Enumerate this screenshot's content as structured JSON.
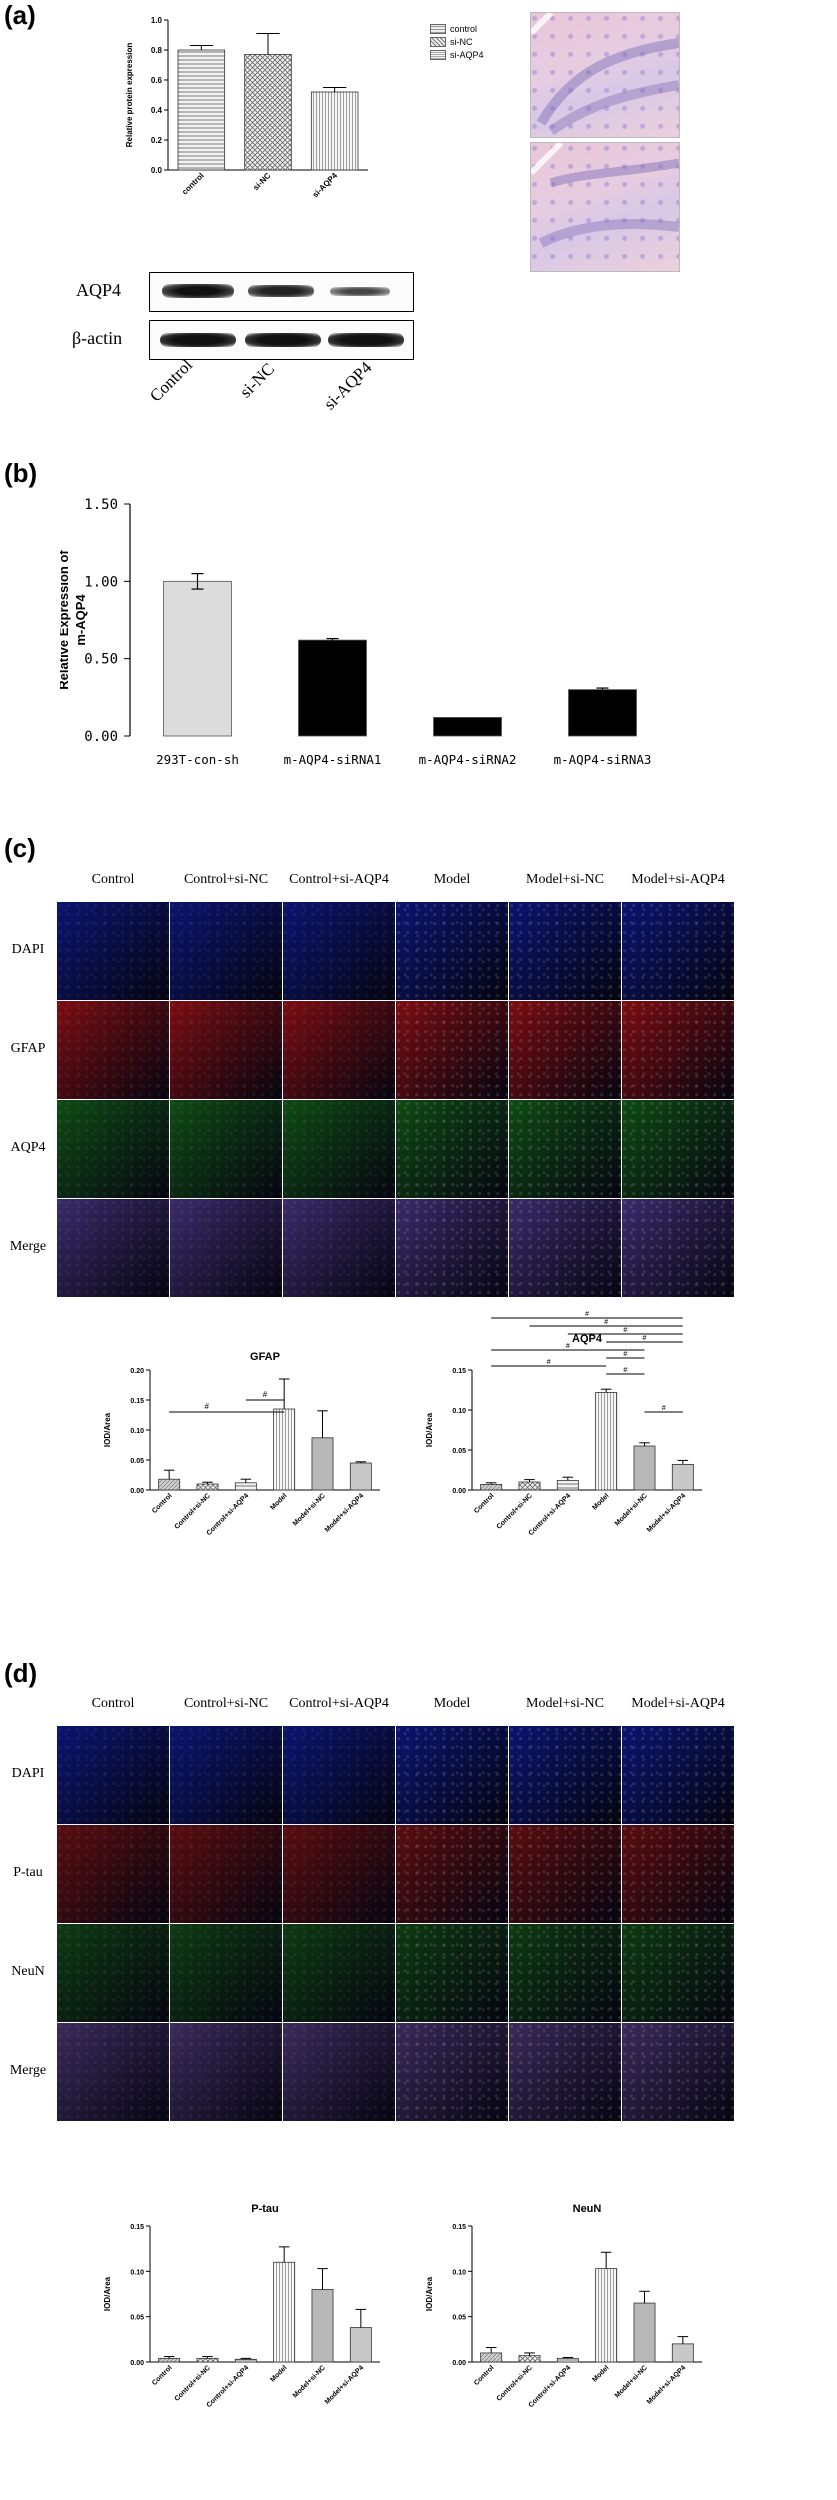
{
  "panels": {
    "a": "(a)",
    "b": "(b)",
    "c": "(c)",
    "d": "(d)"
  },
  "panel_a": {
    "bar_legend": [
      "control",
      "si-NC",
      "si-AQP4"
    ],
    "western": {
      "rows": [
        "AQP4",
        "β-actin"
      ],
      "lanes": [
        "Control",
        "si-NC",
        "si-AQP4"
      ]
    }
  },
  "panel_c": {
    "columns": [
      "Control",
      "Control+si-NC",
      "Control+si-AQP4",
      "Model",
      "Model+si-NC",
      "Model+si-AQP4"
    ],
    "rows": [
      "DAPI",
      "GFAP",
      "AQP4",
      "Merge"
    ],
    "row_colors": [
      "#0b1470",
      "#7a0d12",
      "#0f4a14",
      "#3a2a6a"
    ]
  },
  "panel_d": {
    "columns": [
      "Control",
      "Control+si-NC",
      "Control+si-AQP4",
      "Model",
      "Model+si-NC",
      "Model+si-AQP4"
    ],
    "rows": [
      "DAPI",
      "P-tau",
      "NeuN",
      "Merge"
    ],
    "row_colors": [
      "#0b1470",
      "#5a0d10",
      "#0e3a12",
      "#3a2a5a"
    ]
  },
  "chart_data": [
    {
      "id": "a-bar",
      "type": "bar",
      "categories": [
        "control",
        "si-NC",
        "si-AQP4"
      ],
      "values": [
        0.8,
        0.77,
        0.52
      ],
      "errors": [
        0.03,
        0.14,
        0.03
      ],
      "ylabel": "Relative protein expression",
      "ylim": [
        0.0,
        1.0
      ],
      "yticks": [
        "0.0",
        "0.2",
        "0.4",
        "0.6",
        "0.8",
        "1.0"
      ],
      "legend": "right"
    },
    {
      "id": "b-bar",
      "type": "bar",
      "categories": [
        "293T-con-sh",
        "m-AQP4-siRNA1",
        "m-AQP4-siRNA2",
        "m-AQP4-siRNA3"
      ],
      "values": [
        1.0,
        0.62,
        0.12,
        0.3
      ],
      "errors": [
        0.05,
        0.01,
        0.0,
        0.01
      ],
      "colors": [
        "#dcdcdc",
        "#000000",
        "#000000",
        "#000000"
      ],
      "ylabel": "Relative Expression of m-AQP4",
      "ylim": [
        0.0,
        1.5
      ],
      "yticks": [
        "0.00",
        "0.50",
        "1.00",
        "1.50"
      ]
    },
    {
      "id": "c-gfap",
      "type": "bar",
      "title": "GFAP",
      "categories": [
        "Control",
        "Control+si-NC",
        "Control+si-AQP4",
        "Model",
        "Model+si-NC",
        "Model+si-AQP4"
      ],
      "values": [
        0.018,
        0.01,
        0.012,
        0.135,
        0.087,
        0.045
      ],
      "errors": [
        0.015,
        0.003,
        0.006,
        0.05,
        0.045,
        0.002
      ],
      "ylabel": "IOD/Area",
      "ylim": [
        0.0,
        0.2
      ],
      "yticks": [
        "0.00",
        "0.05",
        "0.10",
        "0.15",
        "0.20"
      ],
      "annotations": [
        "#",
        "#"
      ]
    },
    {
      "id": "c-aqp4",
      "type": "bar",
      "title": "AQP4",
      "categories": [
        "Control",
        "Control+si-NC",
        "Control+si-AQP4",
        "Model",
        "Model+si-NC",
        "Model+si-AQP4"
      ],
      "values": [
        0.007,
        0.01,
        0.012,
        0.122,
        0.055,
        0.032
      ],
      "errors": [
        0.002,
        0.003,
        0.004,
        0.004,
        0.004,
        0.005
      ],
      "ylabel": "IOD/Area",
      "ylim": [
        0.0,
        0.15
      ],
      "yticks": [
        "0.00",
        "0.05",
        "0.10",
        "0.15"
      ],
      "annotations": [
        "#",
        "#",
        "#",
        "#",
        "#",
        "#",
        "#",
        "#",
        "#"
      ]
    },
    {
      "id": "d-ptau",
      "type": "bar",
      "title": "P-tau",
      "categories": [
        "Control",
        "Control+si-NC",
        "Control+si-AQP4",
        "Model",
        "Model+si-NC",
        "Model+si-AQP4"
      ],
      "values": [
        0.004,
        0.004,
        0.003,
        0.11,
        0.08,
        0.038
      ],
      "errors": [
        0.002,
        0.002,
        0.001,
        0.017,
        0.023,
        0.02
      ],
      "ylabel": "IOD/Area",
      "ylim": [
        0.0,
        0.15
      ],
      "yticks": [
        "0.00",
        "0.05",
        "0.10",
        "0.15"
      ]
    },
    {
      "id": "d-neun",
      "type": "bar",
      "title": "NeuN",
      "categories": [
        "Control",
        "Control+si-NC",
        "Control+si-AQP4",
        "Model",
        "Model+si-NC",
        "Model+si-AQP4"
      ],
      "values": [
        0.01,
        0.007,
        0.004,
        0.103,
        0.065,
        0.02
      ],
      "errors": [
        0.006,
        0.003,
        0.001,
        0.018,
        0.013,
        0.008
      ],
      "ylabel": "IOD/Area",
      "ylim": [
        0.0,
        0.15
      ],
      "yticks": [
        "0.00",
        "0.05",
        "0.10",
        "0.15"
      ]
    }
  ]
}
